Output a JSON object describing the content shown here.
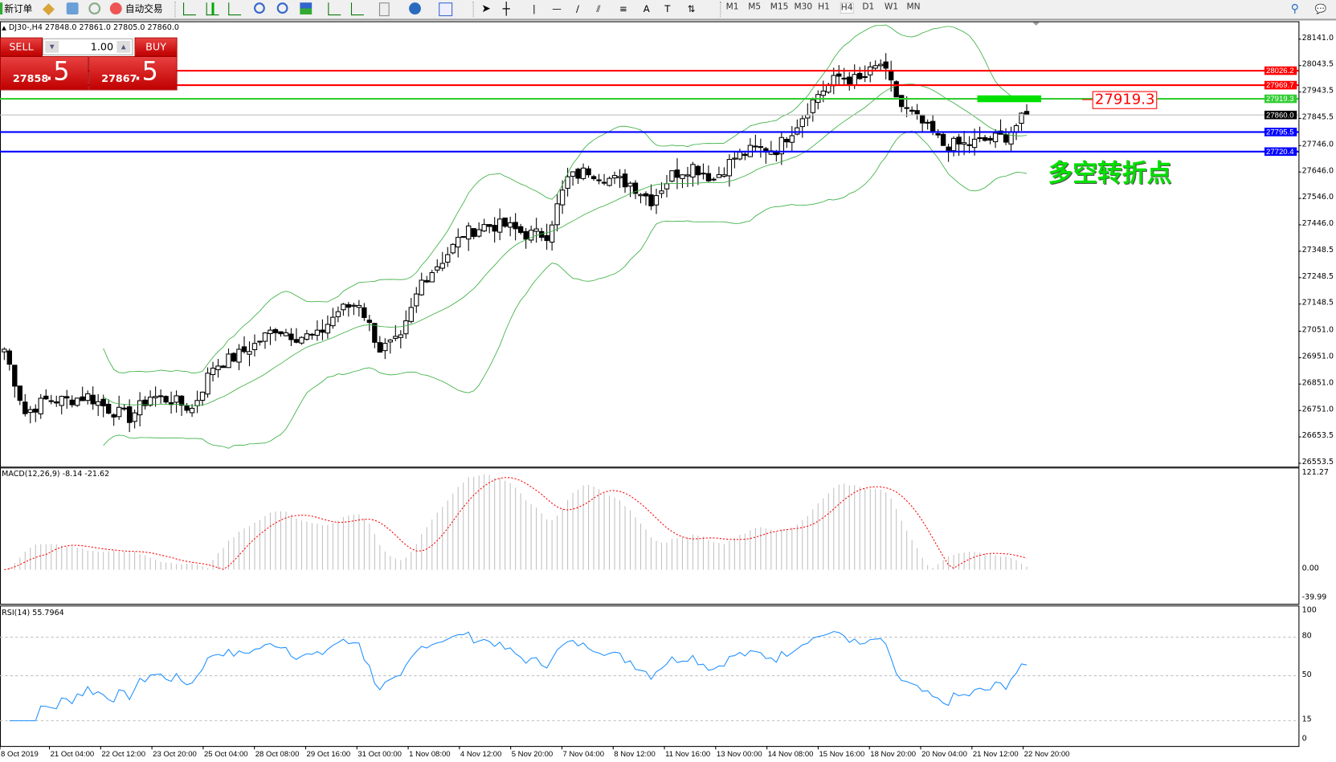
{
  "toolbar": {
    "new_order": "新订单",
    "auto_trading": "自动交易",
    "timeframes": [
      "M1",
      "M5",
      "M15",
      "M30",
      "H1",
      "H4",
      "D1",
      "W1",
      "MN"
    ],
    "active_timeframe": "H4",
    "icons": [
      "new-order-icon",
      "market-watch-icon",
      "navigator-icon",
      "signals-icon",
      "auto-trading-icon",
      "bar-chart-icon",
      "candlestick-icon",
      "line-chart-icon",
      "zoom-in-icon",
      "zoom-out-icon",
      "tile-windows-icon",
      "autoscroll-icon",
      "chart-shift-icon",
      "indicators-icon",
      "periods-icon",
      "templates-icon",
      "cursor-icon",
      "crosshair-icon",
      "vertical-line-icon",
      "horizontal-line-icon",
      "trendline-icon",
      "equidistant-channel-icon",
      "fibonacci-icon",
      "text-icon",
      "text-label-icon",
      "arrows-icon",
      "search-icon",
      "chat-icon"
    ]
  },
  "chart": {
    "header": "DJ30-,H4  27848.0 27861.0 27805.0 27860.0"
  },
  "trade_panel": {
    "sell_label": "SELL",
    "buy_label": "BUY",
    "volume": "1.00",
    "sell_price_main": "27858",
    "sell_price_big": ".5",
    "buy_price_main": "27867",
    "buy_price_big": ".5"
  },
  "price_axis": [
    "28141.0",
    "28043.5",
    "27943.5",
    "27845.5",
    "27746.0",
    "27646.0",
    "27546.0",
    "27446.0",
    "27348.5",
    "27248.5",
    "27148.5",
    "27051.0",
    "26951.0",
    "26851.0",
    "26751.0",
    "26653.5",
    "26553.5"
  ],
  "lines": [
    {
      "price": "28026.2",
      "color": "#ff0000"
    },
    {
      "price": "27969.7",
      "color": "#ff0000"
    },
    {
      "price": "27919.3",
      "color": "#32cd32"
    },
    {
      "price": "27860.0",
      "color": "#c0c0c0",
      "label_bg": "#000000"
    },
    {
      "price": "27795.5",
      "color": "#0000ff"
    },
    {
      "price": "27720.4",
      "color": "#0000ff"
    }
  ],
  "annotations": {
    "price_box": "27919.3",
    "text": "多空转折点",
    "text_color": "#00e000"
  },
  "macd": {
    "label": "MACD(12,26,9) -8.14 -21.62",
    "axis": [
      "121.27",
      "0.00",
      "-39.99"
    ]
  },
  "rsi": {
    "label": "RSI(14) 55.7964",
    "axis": [
      "100",
      "80",
      "50",
      "15",
      "0"
    ]
  },
  "time_axis": [
    "8 Oct 2019",
    "21 Oct 04:00",
    "22 Oct 12:00",
    "23 Oct 20:00",
    "25 Oct 04:00",
    "28 Oct 08:00",
    "29 Oct 16:00",
    "31 Oct 00:00",
    "1 Nov 08:00",
    "4 Nov 12:00",
    "5 Nov 20:00",
    "7 Nov 04:00",
    "8 Nov 12:00",
    "11 Nov 16:00",
    "13 Nov 00:00",
    "14 Nov 08:00",
    "15 Nov 16:00",
    "18 Nov 20:00",
    "20 Nov 04:00",
    "21 Nov 12:00",
    "22 Nov 20:00"
  ],
  "chart_data": {
    "type": "candlestick",
    "symbol": "DJ30-",
    "timeframe": "H4",
    "ylim": [
      26553.5,
      28141.0
    ],
    "approx_closes": [
      26981,
      26742,
      26790,
      26790,
      26805,
      26757,
      26725,
      26805,
      26790,
      26757,
      26917,
      26949,
      26997,
      27060,
      27029,
      27029,
      27124,
      27156,
      26981,
      27013,
      27236,
      27316,
      27411,
      27443,
      27443,
      27411,
      27411,
      27618,
      27650,
      27618,
      27602,
      27539,
      27634,
      27666,
      27618,
      27698,
      27730,
      27730,
      27825,
      27937,
      28001,
      27985,
      28049,
      27889,
      27825,
      27746,
      27746,
      27762,
      27778,
      27860
    ],
    "indicators": [
      "Bollinger Bands",
      "MACD(12,26,9)",
      "RSI(14)"
    ]
  }
}
